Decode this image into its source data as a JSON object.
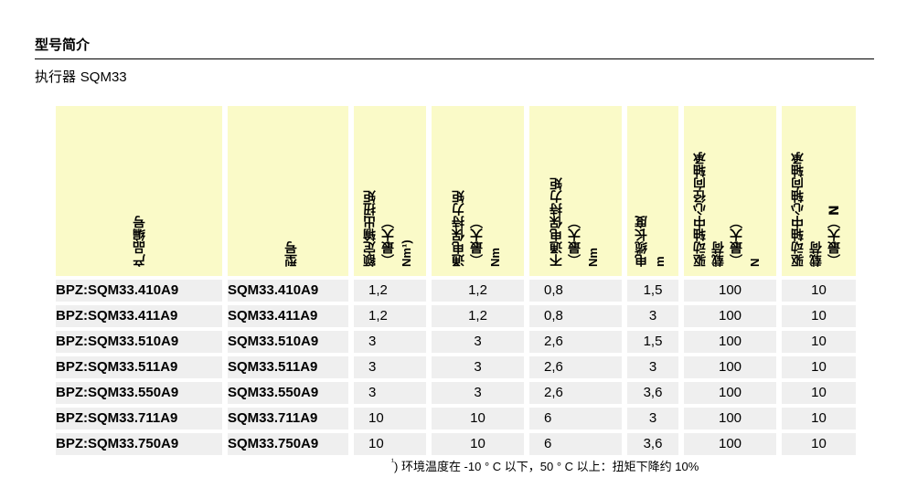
{
  "section": {
    "title": "型号简介"
  },
  "subtitle": {
    "prefix": "执行器",
    "model": "SQM33"
  },
  "headers": [
    {
      "lines": [
        "产品编号"
      ],
      "unit": ""
    },
    {
      "lines": [
        "型号"
      ],
      "unit": ""
    },
    {
      "lines": [
        "额定输出扭矩",
        "（最大）"
      ],
      "unit": "Nm¹)"
    },
    {
      "lines": [
        "通电保持力矩",
        "（最大）"
      ],
      "unit": "Nm"
    },
    {
      "lines": [
        "不通电保持力矩",
        "（最大）"
      ],
      "unit": "Nm"
    },
    {
      "lines": [
        "电缆长度"
      ],
      "unit": "m"
    },
    {
      "lines": [
        "驱动轴中心径向轴承",
        "载荷",
        "（最大）"
      ],
      "unit": "N"
    },
    {
      "lines": [
        "驱动轴中心轴向轴承",
        "载荷",
        "（最大）N"
      ],
      "unit": ""
    }
  ],
  "rows": [
    {
      "product_no": "BPZ:SQM33.410A9",
      "type": "SQM33.410A9",
      "rated_torque": "1,2",
      "holding_powered": "1,2",
      "holding_unpowered": "0,8",
      "cable_length": "1,5",
      "radial_load": "100",
      "axial_load": "10"
    },
    {
      "product_no": "BPZ:SQM33.411A9",
      "type": "SQM33.411A9",
      "rated_torque": "1,2",
      "holding_powered": "1,2",
      "holding_unpowered": "0,8",
      "cable_length": "3",
      "radial_load": "100",
      "axial_load": "10"
    },
    {
      "product_no": "BPZ:SQM33.510A9",
      "type": "SQM33.510A9",
      "rated_torque": "3",
      "holding_powered": "3",
      "holding_unpowered": "2,6",
      "cable_length": "1,5",
      "radial_load": "100",
      "axial_load": "10"
    },
    {
      "product_no": "BPZ:SQM33.511A9",
      "type": "SQM33.511A9",
      "rated_torque": "3",
      "holding_powered": "3",
      "holding_unpowered": "2,6",
      "cable_length": "3",
      "radial_load": "100",
      "axial_load": "10"
    },
    {
      "product_no": "BPZ:SQM33.550A9",
      "type": "SQM33.550A9",
      "rated_torque": "3",
      "holding_powered": "3",
      "holding_unpowered": "2,6",
      "cable_length": "3,6",
      "radial_load": "100",
      "axial_load": "10"
    },
    {
      "product_no": "BPZ:SQM33.711A9",
      "type": "SQM33.711A9",
      "rated_torque": "10",
      "holding_powered": "10",
      "holding_unpowered": "6",
      "cable_length": "3",
      "radial_load": "100",
      "axial_load": "10"
    },
    {
      "product_no": "BPZ:SQM33.750A9",
      "type": "SQM33.750A9",
      "rated_torque": "10",
      "holding_powered": "10",
      "holding_unpowered": "6",
      "cable_length": "3,6",
      "radial_load": "100",
      "axial_load": "10"
    }
  ],
  "footnote": {
    "marker": "¹",
    "text": ") 环境温度在 -10 ° C 以下，50 ° C 以上：扭矩下降约 10%"
  }
}
